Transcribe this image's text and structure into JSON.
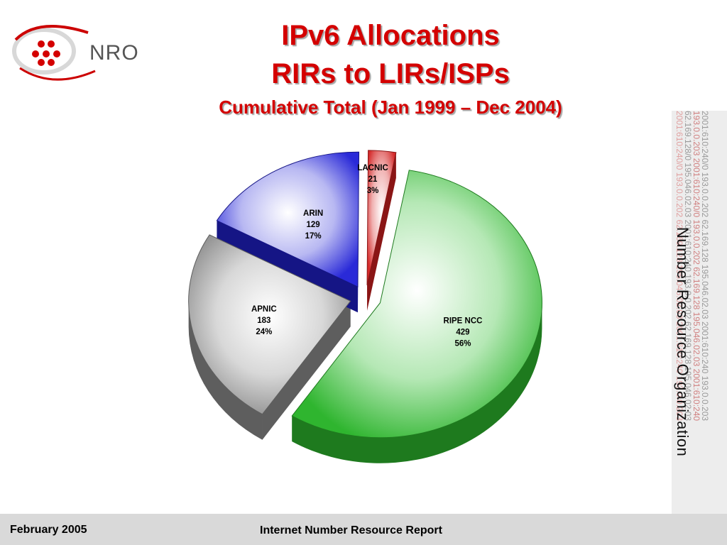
{
  "logo": {
    "text": "NRO"
  },
  "title": {
    "line1": "IPv6 Allocations",
    "line2": "RIRs to LIRs/ISPs",
    "line3": "Cumulative Total (Jan 1999 – Dec 2004)"
  },
  "chart_data": {
    "type": "pie",
    "title": "",
    "slices": [
      {
        "label": "RIPE NCC",
        "value": 429,
        "percent": "56%",
        "color": "#2fb52f",
        "exploded": true
      },
      {
        "label": "APNIC",
        "value": 183,
        "percent": "24%",
        "color": "#9a9a9a",
        "exploded": true
      },
      {
        "label": "ARIN",
        "value": 129,
        "percent": "17%",
        "color": "#2a2ad8",
        "exploded": true
      },
      {
        "label": "LACNIC",
        "value": 21,
        "percent": "3%",
        "color": "#d42a2a",
        "exploded": true
      }
    ],
    "legend": "none"
  },
  "side_band": {
    "text": "Number Resource Organization",
    "address_columns": [
      {
        "text": "2001:610:240/0   193.0.0.202   62.169.128   195.046.02.03   2001:610:240   193.0.0.203",
        "color": "#e0a0a0"
      },
      {
        "text": "62.169.128/0   195.046.02.03   2001:610:240   193.0.0.202   62.169.128   195.046.02.03",
        "color": "#9a9a9a"
      },
      {
        "text": "193.0.0.203   2001:610:240/0   193.0.0.202   62.169.128   195.046.02.03   2001:610:240",
        "color": "#d08080"
      },
      {
        "text": "2001:610:240/0   193.0.0.202   62.169.128   195.046.02.03   2001:610:240   193.0.0.203",
        "color": "#9a9a9a"
      }
    ]
  },
  "footer": {
    "left": "February 2005",
    "center": "Internet Number Resource Report"
  }
}
